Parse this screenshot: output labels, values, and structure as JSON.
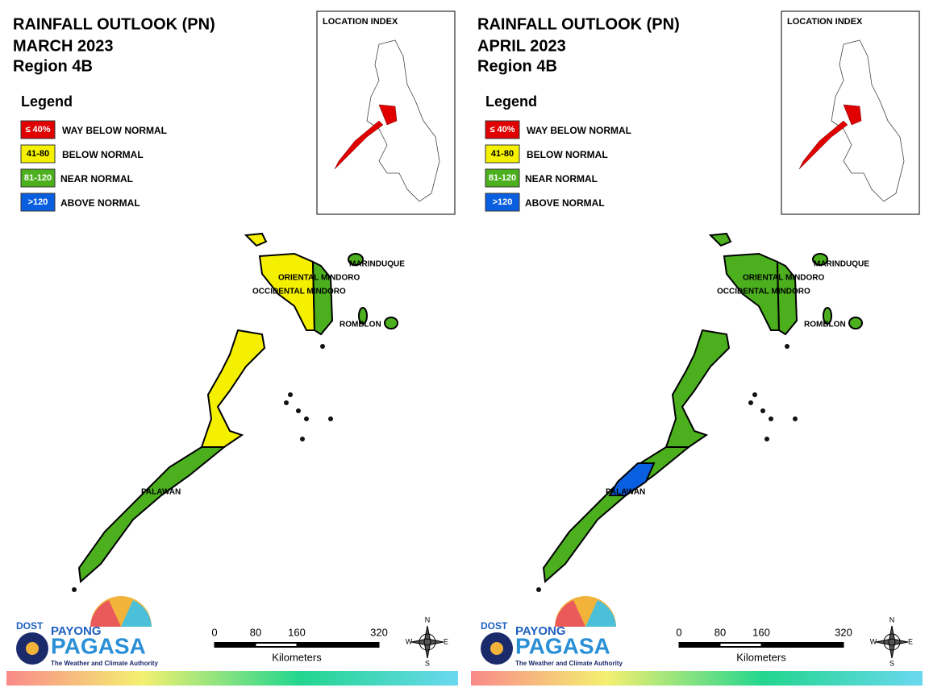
{
  "panels": [
    {
      "title": "RAINFALL OUTLOOK (PN)",
      "period": "MARCH 2023",
      "region": "Region 4B",
      "legend": {
        "title": "Legend",
        "items": [
          {
            "code": "≤ 40%",
            "label": "WAY BELOW NORMAL",
            "color": "#e00000"
          },
          {
            "code": "41-80",
            "label": "BELOW NORMAL",
            "color": "#f5f000"
          },
          {
            "code": "81-120",
            "label": "NEAR NORMAL",
            "color": "#4caf1e"
          },
          {
            "code": ">120",
            "label": "ABOVE NORMAL",
            "color": "#0a5fe0"
          }
        ]
      },
      "inset_title": "LOCATION INDEX",
      "places": [
        "MARINDUQUE",
        "ORIENTAL MINDORO",
        "OCCIDENTAL MINDORO",
        "ROMBLON",
        "PALAWAN"
      ],
      "scale": {
        "ticks": [
          0,
          80,
          160,
          320
        ],
        "unit": "Kilometers"
      },
      "compass": [
        "N",
        "E",
        "S",
        "W"
      ],
      "logo": {
        "agency": "DOST",
        "name1": "PAYONG",
        "name2": "PAGASA",
        "tagline": "The Weather and Climate Authority"
      }
    },
    {
      "title": "RAINFALL OUTLOOK (PN)",
      "period": "APRIL 2023",
      "region": "Region 4B",
      "legend": {
        "title": "Legend",
        "items": [
          {
            "code": "≤ 40%",
            "label": "WAY BELOW NORMAL",
            "color": "#e00000"
          },
          {
            "code": "41-80",
            "label": "BELOW NORMAL",
            "color": "#f5f000"
          },
          {
            "code": "81-120",
            "label": "NEAR NORMAL",
            "color": "#4caf1e"
          },
          {
            "code": ">120",
            "label": "ABOVE NORMAL",
            "color": "#0a5fe0"
          }
        ]
      },
      "inset_title": "LOCATION INDEX",
      "places": [
        "MARINDUQUE",
        "ORIENTAL MINDORO",
        "OCCIDENTAL MINDORO",
        "ROMBLON",
        "PALAWAN"
      ],
      "scale": {
        "ticks": [
          0,
          80,
          160,
          320
        ],
        "unit": "Kilometers"
      },
      "compass": [
        "N",
        "E",
        "S",
        "W"
      ],
      "logo": {
        "agency": "DOST",
        "name1": "PAYONG",
        "name2": "PAGASA",
        "tagline": "The Weather and Climate Authority"
      }
    }
  ]
}
